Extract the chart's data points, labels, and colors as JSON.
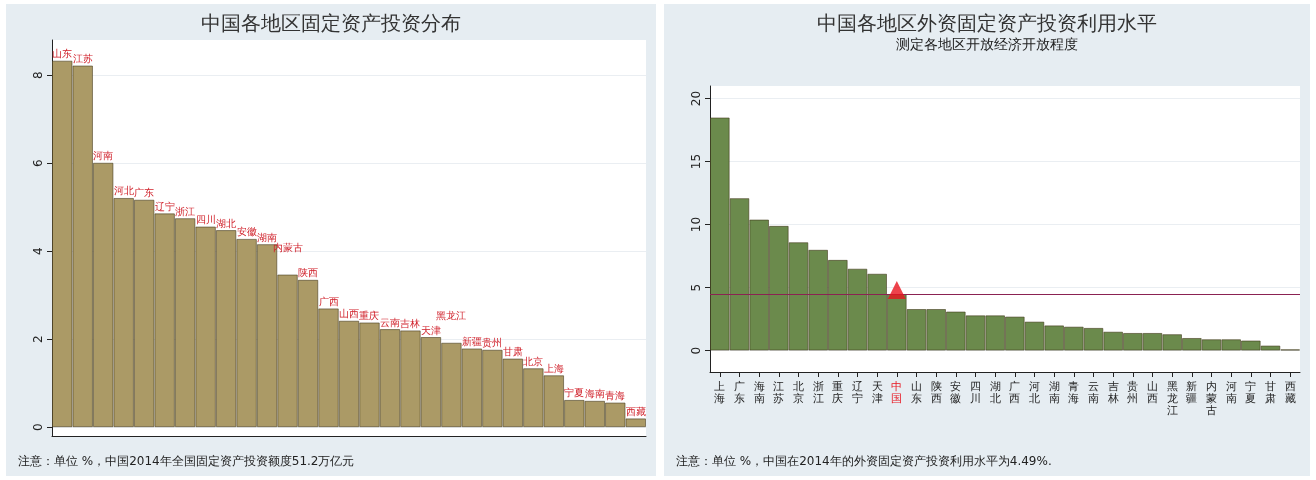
{
  "chart_data": [
    {
      "type": "bar",
      "title": "中国各地区固定资产投资分布",
      "categories": [
        "山东",
        "江苏",
        "河南",
        "河北",
        "广东",
        "辽宁",
        "浙江",
        "四川",
        "湖北",
        "安徽",
        "湖南",
        "内蒙古",
        "陕西",
        "广西",
        "山西",
        "重庆",
        "云南",
        "吉林",
        "天津",
        "黑龙江",
        "新疆",
        "贵州",
        "甘肃",
        "北京",
        "上海",
        "宁夏",
        "海南",
        "青海",
        "西藏"
      ],
      "values": [
        8.33,
        8.22,
        6.01,
        5.21,
        5.17,
        4.86,
        4.75,
        4.56,
        4.48,
        4.28,
        4.16,
        3.47,
        3.35,
        2.7,
        2.42,
        2.38,
        2.23,
        2.2,
        2.05,
        1.92,
        1.79,
        1.76,
        1.56,
        1.34,
        1.18,
        0.62,
        0.6,
        0.56,
        0.2
      ],
      "color": "#ab9a66",
      "ylim": [
        -0.2,
        8.8
      ],
      "yticks": [
        0,
        2,
        4,
        6,
        8
      ],
      "grid": "y",
      "tick_labels": "y",
      "annotations": [
        "注意：单位 %，中国2014年全国固定资产投资额度51.2万亿元"
      ]
    },
    {
      "type": "bar",
      "title": "中国各地区外资固定资产投资利用水平",
      "subtitle": "测定各地区开放经济开放程度",
      "categories": [
        "上海",
        "广东",
        "海南",
        "江苏",
        "北京",
        "浙江",
        "重庆",
        "辽宁",
        "天津",
        "中国",
        "山东",
        "陕西",
        "安徽",
        "四川",
        "湖北",
        "广西",
        "河北",
        "湖南",
        "青海",
        "云南",
        "吉林",
        "贵州",
        "山西",
        "黑龙江",
        "新疆",
        "内蒙古",
        "河南",
        "宁夏",
        "甘肃",
        "西藏"
      ],
      "series": [
        {
          "color": "#6b8a4c",
          "values": [
            18.5,
            12.1,
            10.4,
            9.9,
            8.6,
            8.0,
            7.2,
            6.5,
            6.1,
            4.49,
            3.3,
            3.3,
            3.1,
            2.8,
            2.8,
            2.7,
            2.3,
            2.0,
            1.9,
            1.8,
            1.5,
            1.4,
            1.4,
            1.3,
            1.0,
            0.9,
            0.9,
            0.8,
            0.4,
            0.1
          ]
        },
        {
          "type": "scatter",
          "color": "#e8141e",
          "marker": "triangle",
          "x": [
            "中国"
          ],
          "values": [
            4.49
          ]
        }
      ],
      "ylim": [
        -1.7,
        21
      ],
      "yticks": [
        0,
        5,
        10,
        15,
        20
      ],
      "grid": "y",
      "ref_lines": [
        {
          "axis": "y",
          "value": 4.49,
          "color": "#8b2252"
        }
      ],
      "annotations": [
        "注意：单位 %，中国在2014年的外资固定资产投资利用水平为4.49%."
      ]
    }
  ]
}
